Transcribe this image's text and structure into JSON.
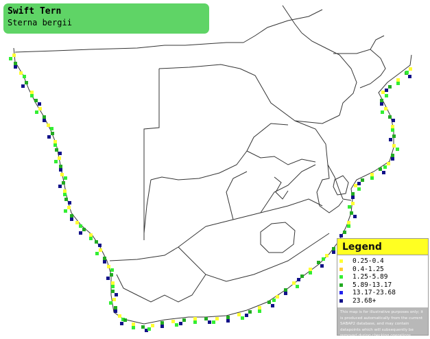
{
  "title": {
    "common_name": "Swift Tern",
    "scientific_name": "Sterna bergii"
  },
  "legend": {
    "heading": "Legend",
    "items": [
      {
        "label": "0.25-0.4",
        "color": "#ffff33"
      },
      {
        "label": "0.4-1.25",
        "color": "#ffcc33"
      },
      {
        "label": "1.25-5.89",
        "color": "#33ee33"
      },
      {
        "label": "5.89-13.17",
        "color": "#22aa22"
      },
      {
        "label": "13.17-23.68",
        "color": "#2222ee"
      },
      {
        "label": "23.68+",
        "color": "#111188"
      }
    ],
    "note": "This map is for illustrative purposes only; it is produced automatically from the current SABAP2 database, and may contain datapoints which will subsequently be removed during checking operations."
  },
  "colors": {
    "title_background": "#5fd466",
    "legend_header_background": "#ffff22",
    "border_lines": "#333333"
  }
}
